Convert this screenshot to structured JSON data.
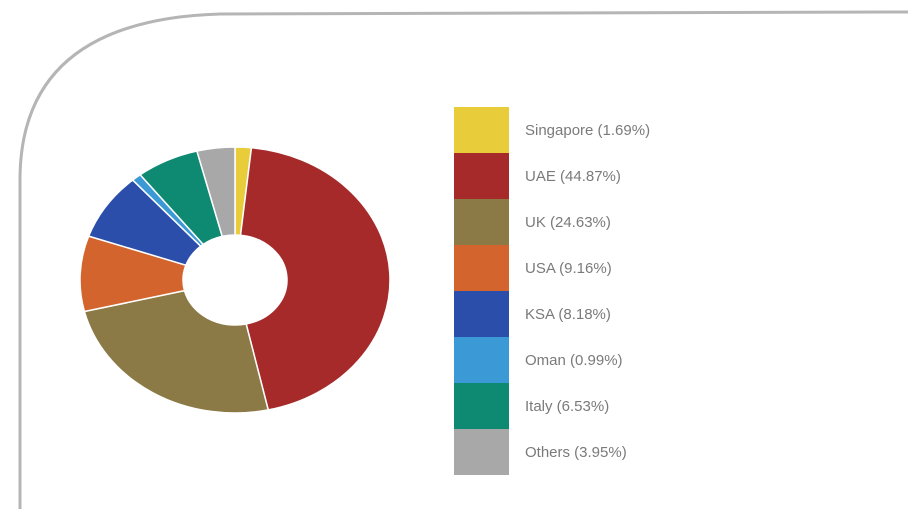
{
  "chart_data": {
    "type": "pie",
    "variant": "donut",
    "legend": "right",
    "slices": [
      {
        "label": "Singapore (1.69%)",
        "value": 1.69,
        "color": "#e8cc3a"
      },
      {
        "label": "UAE (44.87%)",
        "value": 44.87,
        "color": "#a62a2a"
      },
      {
        "label": "UK (24.63%)",
        "value": 24.63,
        "color": "#8b7a45"
      },
      {
        "label": "USA (9.16%)",
        "value": 9.16,
        "color": "#d3642d"
      },
      {
        "label": "KSA (8.18%)",
        "value": 8.18,
        "color": "#2a4eaa"
      },
      {
        "label": "Oman (0.99%)",
        "value": 0.99,
        "color": "#3b9ad6"
      },
      {
        "label": "Italy (6.53%)",
        "value": 6.53,
        "color": "#0f8a72"
      },
      {
        "label": "Others (3.95%)",
        "value": 3.95,
        "color": "#a8a8a8"
      }
    ]
  },
  "colors": {
    "frame_border": "#b5b5b5"
  }
}
